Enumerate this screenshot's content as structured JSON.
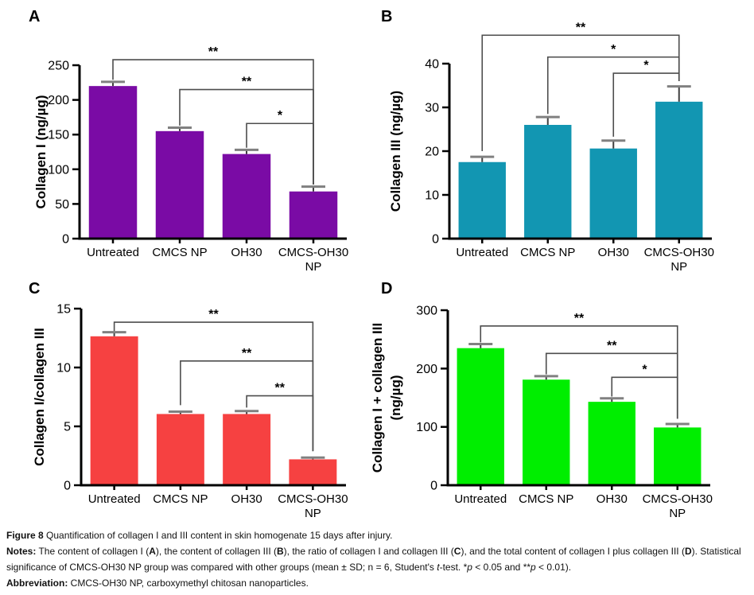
{
  "figure": {
    "caption_segments": [
      {
        "text": "Figure 8",
        "bold": true
      },
      {
        "text": " Quantification of collagen I and III content in skin homogenate 15 days after injury.\n"
      },
      {
        "text": "Notes:",
        "bold": true
      },
      {
        "text": " The content of collagen I ("
      },
      {
        "text": "A",
        "bold": true
      },
      {
        "text": "), the content of collagen III ("
      },
      {
        "text": "B",
        "bold": true
      },
      {
        "text": "), the ratio of collagen I and collagen III ("
      },
      {
        "text": "C",
        "bold": true
      },
      {
        "text": "), and the total content of collagen I plus collagen III ("
      },
      {
        "text": "D",
        "bold": true
      },
      {
        "text": "). Statistical significance of CMCS-OH30 NP group was compared with other groups (mean ± SD; n = 6, Student's "
      },
      {
        "text": "t",
        "italic": true
      },
      {
        "text": "-test. *"
      },
      {
        "text": "p",
        "italic": true
      },
      {
        "text": " < 0.05 and **"
      },
      {
        "text": "p",
        "italic": true
      },
      {
        "text": " < 0.01).\n"
      },
      {
        "text": "Abbreviation:",
        "bold": true
      },
      {
        "text": " CMCS-OH30 NP, carboxymethyl chitosan nanoparticles."
      }
    ]
  },
  "chart_data": [
    {
      "panel": "A",
      "type": "bar",
      "ylabel": "Collagen I (ng/µg)",
      "categories": [
        "Untreated",
        "CMCS NP",
        "OH30",
        "CMCS-OH30\nNP"
      ],
      "values": [
        220,
        155,
        122,
        68
      ],
      "errors": [
        6,
        5,
        6,
        7
      ],
      "bar_color": "#7A0BA5",
      "ylim": [
        0,
        250
      ],
      "yticks": [
        0,
        50,
        100,
        150,
        200,
        250
      ],
      "grid": false,
      "significance": [
        {
          "from": 0,
          "to": 3,
          "label": "**",
          "bar_y": 258,
          "left_drop_to": 229,
          "right_drop_to": 78
        },
        {
          "from": 1,
          "to": 3,
          "label": "**",
          "bar_y": 215,
          "left_drop_to": 163,
          "right_drop_to": 78
        },
        {
          "from": 2,
          "to": 3,
          "label": "*",
          "bar_y": 166,
          "left_drop_to": 131,
          "right_drop_to": 78
        }
      ]
    },
    {
      "panel": "B",
      "type": "bar",
      "ylabel": "Collagen III (ng/µg)",
      "categories": [
        "Untreated",
        "CMCS NP",
        "OH30",
        "CMCS-OH30\nNP"
      ],
      "values": [
        17.5,
        26,
        20.6,
        31.3
      ],
      "errors": [
        1.2,
        1.8,
        1.8,
        3.5
      ],
      "bar_color": "#1296B2",
      "ylim": [
        0,
        40
      ],
      "yticks": [
        0,
        10,
        20,
        30,
        40
      ],
      "grid": false,
      "significance": [
        {
          "from": 0,
          "to": 3,
          "label": "**",
          "bar_y": 46.5,
          "left_drop_to": 20,
          "right_drop_to": 36
        },
        {
          "from": 1,
          "to": 3,
          "label": "*",
          "bar_y": 41.5,
          "left_drop_to": 28.5,
          "right_drop_to": 36
        },
        {
          "from": 2,
          "to": 3,
          "label": "*",
          "bar_y": 37.8,
          "left_drop_to": 23.3,
          "right_drop_to": 36
        }
      ]
    },
    {
      "panel": "C",
      "type": "bar",
      "ylabel": "Collagen I/collagen III",
      "categories": [
        "Untreated",
        "CMCS NP",
        "OH30",
        "CMCS-OH30\nNP"
      ],
      "values": [
        12.65,
        6.05,
        6.05,
        2.2
      ],
      "errors": [
        0.35,
        0.2,
        0.25,
        0.15
      ],
      "bar_color": "#F64141",
      "ylim": [
        0,
        15
      ],
      "yticks": [
        0,
        5,
        10,
        15
      ],
      "grid": false,
      "significance": [
        {
          "from": 0,
          "to": 3,
          "label": "**",
          "bar_y": 13.85,
          "left_drop_to": 13.1,
          "right_drop_to": 2.9
        },
        {
          "from": 1,
          "to": 3,
          "label": "**",
          "bar_y": 10.55,
          "left_drop_to": 6.8,
          "right_drop_to": 2.9
        },
        {
          "from": 2,
          "to": 3,
          "label": "**",
          "bar_y": 7.6,
          "left_drop_to": 6.6,
          "right_drop_to": 2.9
        }
      ]
    },
    {
      "panel": "D",
      "type": "bar",
      "ylabel": "Collagen I + collagen III\n(ng/µg)",
      "categories": [
        "Untreated",
        "CMCS NP",
        "OH30",
        "CMCS-OH30\nNP"
      ],
      "values": [
        235,
        181,
        143,
        99
      ],
      "errors": [
        7,
        6,
        6,
        6
      ],
      "bar_color": "#00EE00",
      "ylim": [
        0,
        300
      ],
      "yticks": [
        0,
        100,
        200,
        300
      ],
      "grid": false,
      "significance": [
        {
          "from": 0,
          "to": 3,
          "label": "**",
          "bar_y": 273,
          "left_drop_to": 245,
          "right_drop_to": 114
        },
        {
          "from": 1,
          "to": 3,
          "label": "**",
          "bar_y": 226,
          "left_drop_to": 190,
          "right_drop_to": 114
        },
        {
          "from": 2,
          "to": 3,
          "label": "*",
          "bar_y": 185,
          "left_drop_to": 152,
          "right_drop_to": 114
        }
      ]
    }
  ],
  "style_colors": {
    "axis": "#000000",
    "error_line": "#3f3f3f",
    "error_cap": "#808080",
    "bracket": "#4d4d4d"
  }
}
